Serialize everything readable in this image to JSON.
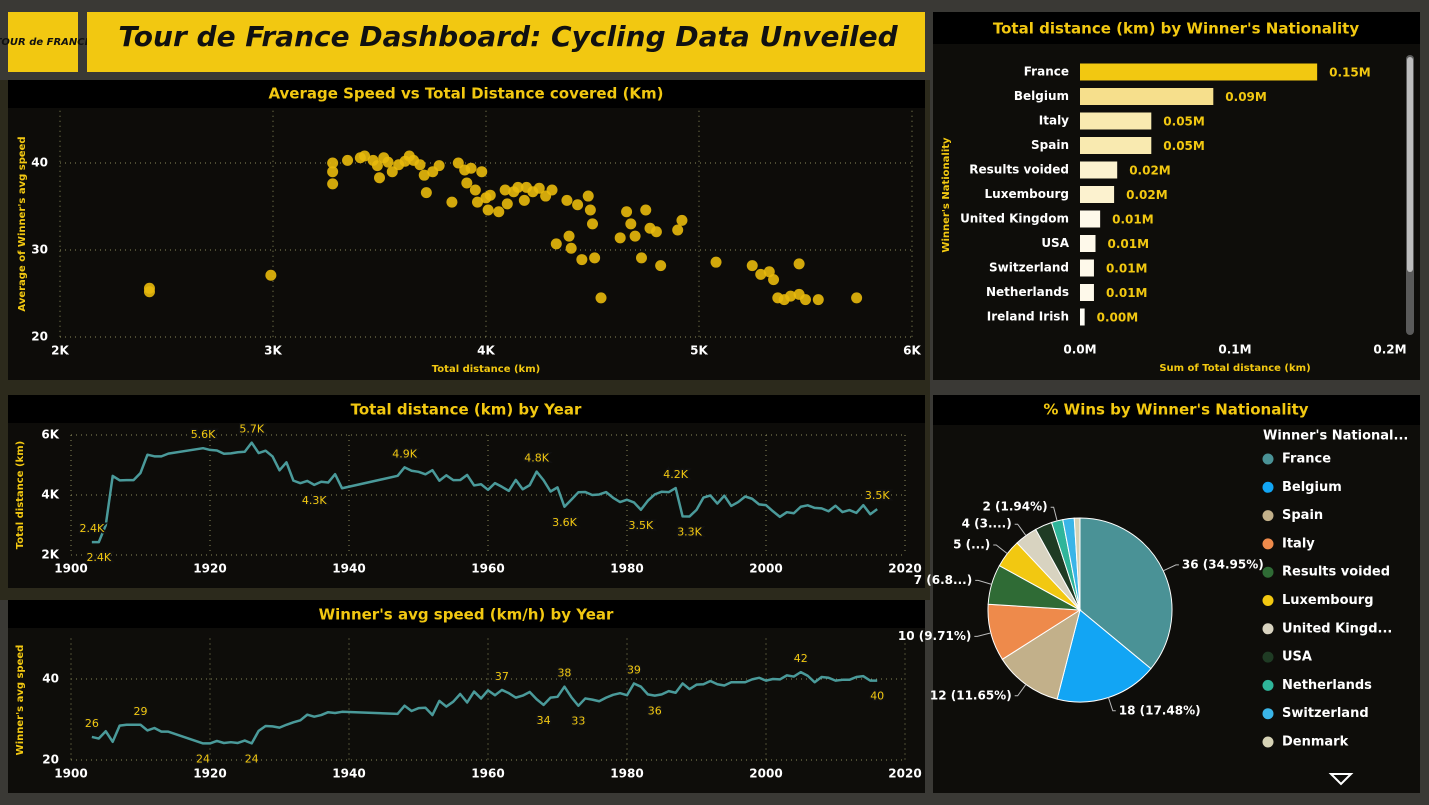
{
  "header": {
    "title": "Tour de France Dashboard: Cycling Data Unveiled",
    "logo": "TOUR de FRANCE"
  },
  "chart_data": [
    {
      "type": "scatter",
      "title": "Average Speed vs Total Distance covered (Km)",
      "x_label": "Total distance (km)",
      "y_label": "Average of Winner's avg speed",
      "color": "#e8b90c",
      "grid": true,
      "x": [
        2420,
        2420,
        2990,
        3280,
        3280,
        3280,
        3350,
        3410,
        3430,
        3470,
        3490,
        3520,
        3540,
        3500,
        3560,
        3590,
        3620,
        3640,
        3660,
        3690,
        3710,
        3720,
        3750,
        3780,
        3840,
        3870,
        3900,
        3910,
        3930,
        3950,
        3960,
        3980,
        4000,
        4010,
        4020,
        4060,
        4090,
        4100,
        4130,
        4150,
        4180,
        4190,
        4220,
        4250,
        4280,
        4310,
        4330,
        4380,
        4390,
        4400,
        4430,
        4450,
        4480,
        4490,
        4500,
        4510,
        4540,
        4630,
        4660,
        4680,
        4700,
        4730,
        4750,
        4770,
        4800,
        4820,
        4900,
        4920,
        5080,
        5250,
        5290,
        5330,
        5350,
        5370,
        5400,
        5430,
        5470,
        5470,
        5500,
        5560,
        5740
      ],
      "values": [
        25.6,
        25.2,
        27.1,
        40.0,
        39.0,
        37.6,
        40.3,
        40.6,
        40.8,
        40.3,
        39.7,
        40.6,
        40.1,
        38.3,
        39.0,
        39.8,
        40.2,
        40.8,
        40.3,
        39.8,
        38.6,
        36.6,
        39.0,
        39.7,
        35.5,
        40.0,
        39.2,
        37.7,
        39.4,
        36.9,
        35.5,
        39.0,
        36.0,
        34.6,
        36.3,
        34.4,
        36.9,
        35.3,
        36.7,
        37.2,
        35.7,
        37.2,
        36.7,
        37.1,
        36.2,
        36.9,
        30.7,
        35.7,
        31.6,
        30.2,
        35.2,
        28.9,
        36.2,
        34.6,
        33.0,
        29.1,
        24.5,
        31.4,
        34.4,
        33.0,
        31.6,
        29.1,
        34.6,
        32.5,
        32.1,
        28.2,
        32.3,
        33.4,
        28.6,
        28.2,
        27.2,
        27.5,
        26.6,
        24.5,
        24.3,
        24.7,
        28.4,
        24.9,
        24.3,
        24.3,
        24.5
      ],
      "xlim": [
        2000,
        6000
      ],
      "xticks": [
        {
          "value": 2000,
          "label": "2K"
        },
        {
          "value": 3000,
          "label": "3K"
        },
        {
          "value": 4000,
          "label": "4K"
        },
        {
          "value": 5000,
          "label": "5K"
        },
        {
          "value": 6000,
          "label": "6K"
        }
      ],
      "ylim": [
        20,
        46
      ],
      "yticks": [
        20,
        30,
        40
      ]
    },
    {
      "type": "bar",
      "orientation": "horizontal",
      "title": "Total distance (km) by Winner's Nationality",
      "x_label": "Sum of Total distance (km)",
      "y_label": "Winner's Nationality",
      "categories": [
        "France",
        "Belgium",
        "Italy",
        "Spain",
        "Results voided",
        "Luxembourg",
        "United Kingdom",
        "USA",
        "Switzerland",
        "Netherlands",
        "Ireland Irish"
      ],
      "values": [
        153000,
        86000,
        46000,
        46000,
        24000,
        22000,
        13000,
        10000,
        9000,
        9000,
        3000
      ],
      "value_labels": [
        "0.15M",
        "0.09M",
        "0.05M",
        "0.05M",
        "0.02M",
        "0.02M",
        "0.01M",
        "0.01M",
        "0.01M",
        "0.01M",
        "0.00M"
      ],
      "colors": [
        "#f2c811",
        "#f6df8c",
        "#f9eab0",
        "#f9eab0",
        "#fcf2cf",
        "#fcf2cf",
        "#fef9ea",
        "#fef9ea",
        "#fef9ea",
        "#fef9ea",
        "#fffdf6"
      ],
      "xlim": [
        0,
        200000
      ],
      "xticks": [
        {
          "value": 0,
          "label": "0.0M"
        },
        {
          "value": 100000,
          "label": "0.1M"
        },
        {
          "value": 200000,
          "label": "0.2M"
        }
      ]
    },
    {
      "type": "line",
      "title": "Total distance (km) by Year",
      "y_label": "Total distance (km)",
      "color": "#4a9a9a",
      "grid": true,
      "x": [
        1903,
        1904,
        1905,
        1906,
        1907,
        1908,
        1909,
        1910,
        1911,
        1912,
        1913,
        1914,
        1919,
        1920,
        1921,
        1922,
        1923,
        1924,
        1925,
        1926,
        1927,
        1928,
        1929,
        1930,
        1931,
        1932,
        1933,
        1934,
        1935,
        1936,
        1937,
        1938,
        1939,
        1947,
        1948,
        1949,
        1950,
        1951,
        1952,
        1953,
        1954,
        1955,
        1956,
        1957,
        1958,
        1959,
        1960,
        1961,
        1962,
        1963,
        1964,
        1965,
        1966,
        1967,
        1968,
        1969,
        1970,
        1971,
        1972,
        1973,
        1974,
        1975,
        1976,
        1977,
        1978,
        1979,
        1980,
        1981,
        1982,
        1983,
        1984,
        1985,
        1986,
        1987,
        1988,
        1989,
        1990,
        1991,
        1992,
        1993,
        1994,
        1995,
        1996,
        1997,
        1998,
        1999,
        2000,
        2001,
        2002,
        2003,
        2004,
        2005,
        2006,
        2007,
        2008,
        2009,
        2010,
        2011,
        2012,
        2013,
        2014,
        2015,
        2016
      ],
      "values": [
        2428,
        2428,
        2994,
        4637,
        4488,
        4497,
        4497,
        4734,
        5343,
        5289,
        5287,
        5380,
        5560,
        5503,
        5485,
        5375,
        5386,
        5425,
        5440,
        5745,
        5398,
        5476,
        5286,
        4822,
        5091,
        4479,
        4395,
        4470,
        4338,
        4442,
        4415,
        4694,
        4224,
        4640,
        4922,
        4808,
        4773,
        4690,
        4827,
        4476,
        4656,
        4495,
        4498,
        4669,
        4319,
        4358,
        4173,
        4397,
        4274,
        4138,
        4504,
        4188,
        4329,
        4779,
        4492,
        4117,
        4254,
        3608,
        3846,
        4090,
        4098,
        4000,
        4017,
        4096,
        3908,
        3765,
        3842,
        3753,
        3507,
        3809,
        4021,
        4109,
        4094,
        4231,
        3286,
        3285,
        3504,
        3914,
        3983,
        3714,
        3978,
        3635,
        3765,
        3950,
        3875,
        3687,
        3662,
        3458,
        3272,
        3427,
        3391,
        3608,
        3657,
        3570,
        3554,
        3459,
        3642,
        3430,
        3497,
        3404,
        3660,
        3360,
        3529
      ],
      "value_labels": [
        "2.4K",
        "2.4K",
        null,
        null,
        null,
        null,
        null,
        null,
        null,
        null,
        null,
        null,
        "5.6K",
        null,
        null,
        null,
        null,
        null,
        null,
        "5.7K",
        null,
        null,
        null,
        null,
        null,
        null,
        null,
        null,
        "4.3K",
        null,
        null,
        null,
        null,
        null,
        "4.9K",
        null,
        null,
        null,
        null,
        null,
        null,
        null,
        null,
        null,
        null,
        null,
        null,
        null,
        null,
        null,
        null,
        null,
        null,
        "4.8K",
        null,
        null,
        null,
        "3.6K",
        null,
        null,
        null,
        null,
        null,
        null,
        null,
        null,
        null,
        null,
        "3.5K",
        null,
        null,
        null,
        null,
        "4.2K",
        null,
        "3.3K",
        null,
        null,
        null,
        null,
        null,
        null,
        null,
        null,
        null,
        null,
        null,
        null,
        null,
        null,
        null,
        null,
        null,
        null,
        null,
        null,
        null,
        null,
        null,
        null,
        null,
        null,
        "3.5K"
      ],
      "xlim": [
        1900,
        2020
      ],
      "xticks": [
        1900,
        1920,
        1940,
        1960,
        1980,
        2000,
        2020
      ],
      "ylim": [
        2000,
        6000
      ],
      "yticks": [
        {
          "value": 2000,
          "label": "2K"
        },
        {
          "value": 4000,
          "label": "4K"
        },
        {
          "value": 6000,
          "label": "6K"
        }
      ]
    },
    {
      "type": "line",
      "title": "Winner's avg speed (km/h) by Year",
      "y_label": "Winner's avg speed",
      "color": "#4a9a9a",
      "grid": true,
      "x": [
        1903,
        1904,
        1905,
        1906,
        1907,
        1908,
        1909,
        1910,
        1911,
        1912,
        1913,
        1914,
        1919,
        1920,
        1921,
        1922,
        1923,
        1924,
        1925,
        1926,
        1927,
        1928,
        1929,
        1930,
        1931,
        1932,
        1933,
        1934,
        1935,
        1936,
        1937,
        1938,
        1939,
        1947,
        1948,
        1949,
        1950,
        1951,
        1952,
        1953,
        1954,
        1955,
        1956,
        1957,
        1958,
        1959,
        1960,
        1961,
        1962,
        1963,
        1964,
        1965,
        1966,
        1967,
        1968,
        1969,
        1970,
        1971,
        1972,
        1973,
        1974,
        1975,
        1976,
        1977,
        1978,
        1979,
        1980,
        1981,
        1982,
        1983,
        1984,
        1985,
        1986,
        1987,
        1988,
        1989,
        1990,
        1991,
        1992,
        1993,
        1994,
        1995,
        1996,
        1997,
        1998,
        1999,
        2000,
        2001,
        2002,
        2003,
        2004,
        2005,
        2006,
        2007,
        2008,
        2009,
        2010,
        2011,
        2012,
        2013,
        2014,
        2015,
        2016
      ],
      "values": [
        25.7,
        25.3,
        27.1,
        24.5,
        28.5,
        28.7,
        28.7,
        28.7,
        27.3,
        27.9,
        27.0,
        27.0,
        24.1,
        24.1,
        24.7,
        24.2,
        24.4,
        24.2,
        24.8,
        24.1,
        27.2,
        28.4,
        28.3,
        28.0,
        28.7,
        29.3,
        29.8,
        31.2,
        30.7,
        31.1,
        31.8,
        31.6,
        31.9,
        31.4,
        33.4,
        32.1,
        32.8,
        32.9,
        31.1,
        34.6,
        33.2,
        34.4,
        36.3,
        34.2,
        36.9,
        35.2,
        37.2,
        36.0,
        37.3,
        36.5,
        35.4,
        35.9,
        36.8,
        35.0,
        33.6,
        35.4,
        35.6,
        38.1,
        35.5,
        33.4,
        35.2,
        34.9,
        34.5,
        35.4,
        36.1,
        36.5,
        36.0,
        38.9,
        38.1,
        36.2,
        35.9,
        36.2,
        37.0,
        36.6,
        38.9,
        37.5,
        38.6,
        38.7,
        39.5,
        38.7,
        38.4,
        39.2,
        39.2,
        39.2,
        39.9,
        40.3,
        39.6,
        40.0,
        39.9,
        40.9,
        40.6,
        41.7,
        40.8,
        39.2,
        40.5,
        40.3,
        39.6,
        39.8,
        39.8,
        40.5,
        40.7,
        39.6,
        39.6
      ],
      "value_labels": [
        "26",
        null,
        null,
        null,
        null,
        null,
        null,
        "29",
        null,
        null,
        null,
        null,
        "24",
        null,
        null,
        null,
        null,
        null,
        null,
        "24",
        null,
        null,
        null,
        null,
        null,
        null,
        null,
        null,
        null,
        null,
        null,
        null,
        null,
        null,
        null,
        null,
        null,
        null,
        null,
        null,
        null,
        null,
        null,
        null,
        null,
        null,
        null,
        null,
        "37",
        null,
        null,
        null,
        null,
        null,
        "34",
        null,
        null,
        "38",
        null,
        "33",
        null,
        null,
        null,
        null,
        null,
        null,
        null,
        "39",
        null,
        null,
        "36",
        null,
        null,
        null,
        null,
        null,
        null,
        null,
        null,
        null,
        null,
        null,
        null,
        null,
        null,
        null,
        null,
        null,
        null,
        null,
        null,
        "42",
        null,
        null,
        null,
        null,
        null,
        null,
        null,
        null,
        null,
        null,
        "40"
      ],
      "xlim": [
        1900,
        2020
      ],
      "xticks": [
        1900,
        1920,
        1940,
        1960,
        1980,
        2000,
        2020
      ],
      "ylim": [
        20,
        50
      ],
      "yticks": [
        20,
        40
      ]
    },
    {
      "type": "pie",
      "title": "% Wins by Winner's Nationality",
      "legend_title": "Winner's National...",
      "legend": "right",
      "categories": [
        "France",
        "Belgium",
        "Spain",
        "Italy",
        "Results voided",
        "Luxembourg",
        "United Kingd...",
        "USA",
        "Netherlands",
        "Switzerland",
        "Denmark"
      ],
      "values": [
        36,
        18,
        12,
        10,
        7,
        5,
        4,
        3,
        2,
        2,
        1
      ],
      "value_labels": [
        "36 (34.95%)",
        "18 (17.48%)",
        "12 (11.65%)",
        "10 (9.71%)",
        "7 (6.8...)",
        "5 (...)",
        "4 (3....)",
        null,
        "2 (1.94%)",
        null,
        null
      ],
      "colors": [
        "#4a9296",
        "#12a5f4",
        "#c2b08a",
        "#ee8a4b",
        "#2f6b35",
        "#f2c811",
        "#d8d3c0",
        "#1f3b24",
        "#2fb59a",
        "#3ab5e8",
        "#d6d2b5"
      ]
    }
  ]
}
